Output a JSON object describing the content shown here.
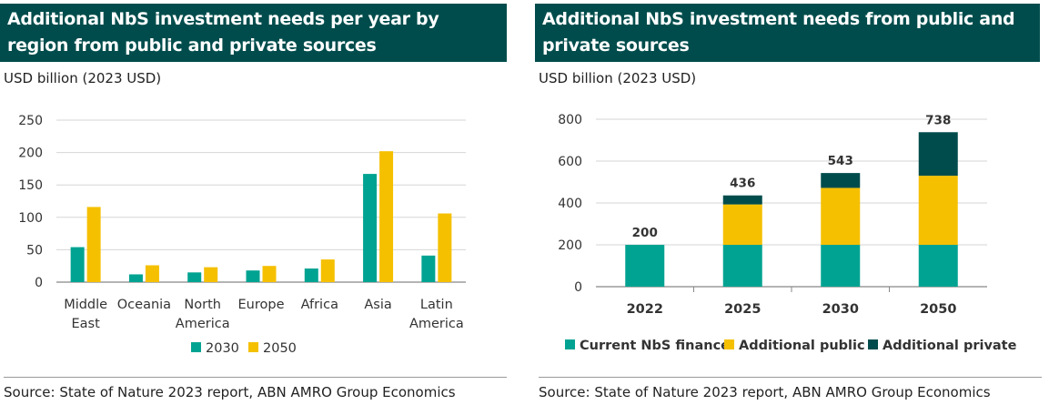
{
  "left_panel": {
    "title": "Additional NbS investment needs per year by region from public and private sources",
    "unit_label": "USD billion (2023 USD)",
    "source": "Source: State of Nature 2023 report, ABN AMRO Group Economics"
  },
  "right_panel": {
    "title": "Additional NbS investment needs from public and private sources",
    "unit_label": "USD billion (2023 USD)",
    "source": "Source: State of Nature 2023 report, ABN AMRO Group Economics"
  },
  "colors": {
    "teal": "#00a391",
    "yellow": "#f5c000",
    "dark": "#004c4c",
    "header_bg": "#004c4c"
  },
  "chart_data": [
    {
      "type": "bar",
      "title": "Additional NbS investment needs per year by region from public and private sources",
      "ylabel": "USD billion (2023 USD)",
      "categories": [
        [
          "Middle",
          "East"
        ],
        [
          "Oceania"
        ],
        [
          "North",
          "America"
        ],
        [
          "Europe"
        ],
        [
          "Africa"
        ],
        [
          "Asia"
        ],
        [
          "Latin",
          "America"
        ]
      ],
      "series": [
        {
          "name": "2030",
          "color": "#00a391",
          "values": [
            54,
            12,
            15,
            18,
            21,
            167,
            41
          ]
        },
        {
          "name": "2050",
          "color": "#f5c000",
          "values": [
            116,
            26,
            23,
            25,
            35,
            202,
            106
          ]
        }
      ],
      "yticks": [
        0,
        50,
        100,
        150,
        200,
        250
      ],
      "ylim": [
        0,
        250
      ],
      "legend": "bottom"
    },
    {
      "type": "bar",
      "stacked": true,
      "title": "Additional NbS investment needs from public and private sources",
      "ylabel": "USD billion (2023 USD)",
      "categories": [
        "2022",
        "2025",
        "2030",
        "2050"
      ],
      "series": [
        {
          "name": "Current NbS finance",
          "color": "#00a391",
          "values": [
            200,
            200,
            200,
            200
          ]
        },
        {
          "name": "Additional public",
          "color": "#f5c000",
          "values": [
            0,
            193,
            272,
            330
          ]
        },
        {
          "name": "Additional private",
          "color": "#004c4c",
          "values": [
            0,
            43,
            71,
            208
          ]
        }
      ],
      "totals": [
        "200",
        "436",
        "543",
        "738"
      ],
      "yticks": [
        0,
        200,
        400,
        600,
        800
      ],
      "ylim": [
        0,
        800
      ],
      "legend": "bottom"
    }
  ]
}
